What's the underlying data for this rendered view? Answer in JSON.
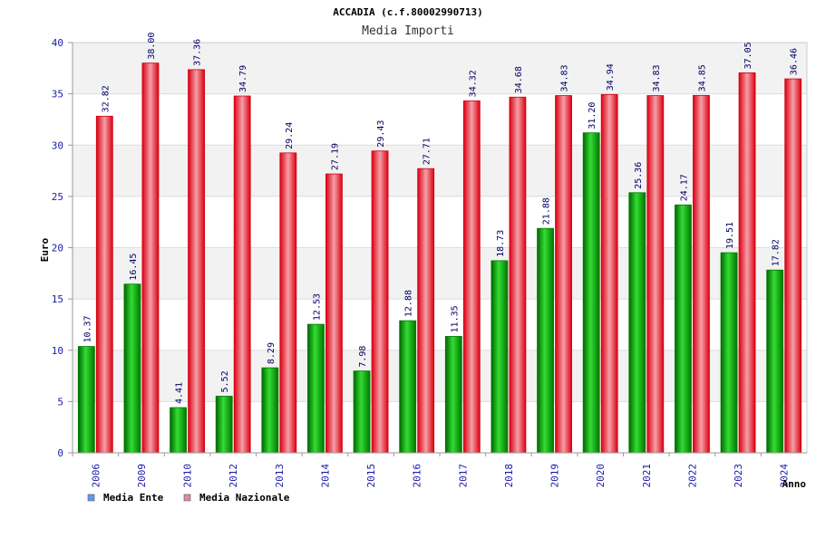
{
  "chart_data": {
    "type": "bar",
    "title": "ACCADIA (c.f.80002990713)",
    "subtitle": "Media Importi",
    "xlabel": "Anno",
    "ylabel": "Euro",
    "ylim": [
      0,
      40
    ],
    "yticks": [
      "0",
      "5",
      "10",
      "15",
      "20",
      "25",
      "30",
      "35",
      "40"
    ],
    "grid": true,
    "legend_position": "bottom-left",
    "categories": [
      "2006",
      "2009",
      "2010",
      "2012",
      "2013",
      "2014",
      "2015",
      "2016",
      "2017",
      "2018",
      "2019",
      "2020",
      "2021",
      "2022",
      "2023",
      "2024"
    ],
    "series": [
      {
        "name": "Media Ente",
        "color": "#00aa00",
        "legend_color": "#6699ee",
        "values": [
          10.37,
          16.45,
          4.41,
          5.52,
          8.29,
          12.53,
          7.98,
          12.88,
          11.35,
          18.73,
          21.88,
          31.2,
          25.36,
          24.17,
          19.51,
          17.82
        ],
        "labels": [
          "10.37",
          "16.45",
          "4.41",
          "5.52",
          "8.29",
          "12.53",
          "7.98",
          "12.88",
          "11.35",
          "18.73",
          "21.88",
          "31.20",
          "25.36",
          "24.17",
          "19.51",
          "17.82"
        ]
      },
      {
        "name": "Media Nazionale",
        "color": "#ee1122",
        "legend_color": "#dd88aa",
        "values": [
          32.82,
          38.0,
          37.36,
          34.79,
          29.24,
          27.19,
          29.43,
          27.71,
          34.32,
          34.68,
          34.83,
          34.94,
          34.83,
          34.85,
          37.05,
          36.46
        ],
        "labels": [
          "32.82",
          "38.00",
          "37.36",
          "34.79",
          "29.24",
          "27.19",
          "29.43",
          "27.71",
          "34.32",
          "34.68",
          "34.83",
          "34.94",
          "34.83",
          "34.85",
          "37.05",
          "36.46"
        ]
      }
    ]
  }
}
